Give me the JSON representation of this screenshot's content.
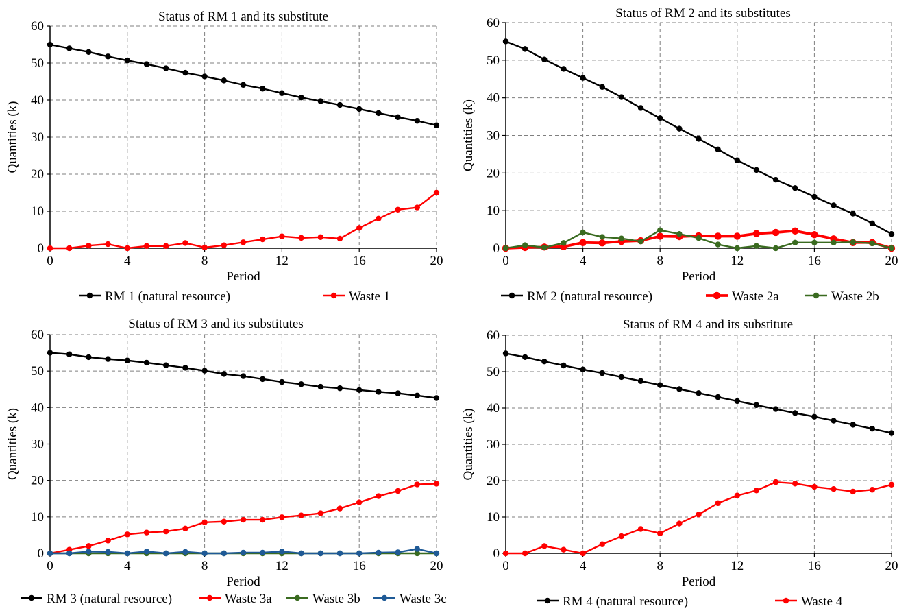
{
  "figure_title": "",
  "chart_data": [
    {
      "type": "line",
      "title": "Status of RM 1 and its substitute",
      "xlabel": "Period",
      "ylabel": "Quantities (k)",
      "xlim": [
        0,
        20
      ],
      "ylim": [
        0,
        60
      ],
      "xticks": [
        0,
        4,
        8,
        12,
        16,
        20
      ],
      "yticks": [
        0,
        10,
        20,
        30,
        40,
        50,
        60
      ],
      "grid": true,
      "legend_position": "bottom",
      "x": [
        0,
        1,
        2,
        3,
        4,
        5,
        6,
        7,
        8,
        9,
        10,
        11,
        12,
        13,
        14,
        15,
        16,
        17,
        18,
        19,
        20
      ],
      "series": [
        {
          "name": "RM 1 (natural resource)",
          "color": "#000000",
          "thick": false,
          "values": [
            55,
            54,
            53,
            51.8,
            50.7,
            49.7,
            48.6,
            47.4,
            46.4,
            45.3,
            44.1,
            43.1,
            41.9,
            40.7,
            39.7,
            38.7,
            37.6,
            36.5,
            35.4,
            34.4,
            33.2
          ]
        },
        {
          "name": "Waste 1",
          "color": "#ff0000",
          "thick": false,
          "values": [
            0,
            0,
            0.7,
            1.1,
            0,
            0.6,
            0.6,
            1.4,
            0.2,
            0.8,
            1.6,
            2.4,
            3.2,
            2.8,
            3,
            2.6,
            5.5,
            8,
            10.4,
            11,
            15
          ]
        }
      ]
    },
    {
      "type": "line",
      "title": "Status of RM 2 and its substitutes",
      "xlabel": "Period",
      "ylabel": "Quantities (k)",
      "xlim": [
        0,
        20
      ],
      "ylim": [
        0,
        60
      ],
      "xticks": [
        0,
        4,
        8,
        12,
        16,
        20
      ],
      "yticks": [
        0,
        10,
        20,
        30,
        40,
        50,
        60
      ],
      "grid": true,
      "legend_position": "bottom",
      "x": [
        0,
        1,
        2,
        3,
        4,
        5,
        6,
        7,
        8,
        9,
        10,
        11,
        12,
        13,
        14,
        15,
        16,
        17,
        18,
        19,
        20
      ],
      "series": [
        {
          "name": "RM 2 (natural resource)",
          "color": "#000000",
          "thick": false,
          "values": [
            55,
            53,
            50.2,
            47.7,
            45.3,
            42.9,
            40.2,
            37.3,
            34.6,
            31.8,
            29.1,
            26.3,
            23.4,
            20.8,
            18.2,
            16,
            13.7,
            11.4,
            9.2,
            6.6,
            3.8
          ]
        },
        {
          "name": "Waste 2a",
          "color": "#ff0000",
          "thick": true,
          "values": [
            0,
            0.2,
            0.3,
            0.4,
            1.5,
            1.4,
            1.8,
            2,
            3.2,
            3.1,
            3.3,
            3.2,
            3.2,
            3.9,
            4.2,
            4.6,
            3.6,
            2.5,
            1.5,
            1.5,
            0
          ]
        },
        {
          "name": "Waste 2b",
          "color": "#3a6b20",
          "thick": false,
          "values": [
            0,
            0.8,
            0.2,
            1.4,
            4.2,
            3,
            2.6,
            1.8,
            4.8,
            3.8,
            2.7,
            1,
            0,
            0.6,
            0,
            1.5,
            1.5,
            1.5,
            1.6,
            1.3,
            0
          ]
        }
      ]
    },
    {
      "type": "line",
      "title": "Status of RM 3 and its substitutes",
      "xlabel": "Period",
      "ylabel": "Quantities (k)",
      "xlim": [
        0,
        20
      ],
      "ylim": [
        0,
        60
      ],
      "xticks": [
        0,
        4,
        8,
        12,
        16,
        20
      ],
      "yticks": [
        0,
        10,
        20,
        30,
        40,
        50,
        60
      ],
      "grid": true,
      "legend_position": "bottom",
      "x": [
        0,
        1,
        2,
        3,
        4,
        5,
        6,
        7,
        8,
        9,
        10,
        11,
        12,
        13,
        14,
        15,
        16,
        17,
        18,
        19,
        20
      ],
      "series": [
        {
          "name": "RM 3 (natural resource)",
          "color": "#000000",
          "thick": false,
          "values": [
            55,
            54.6,
            53.8,
            53.3,
            52.9,
            52.3,
            51.6,
            50.9,
            50.1,
            49.2,
            48.6,
            47.8,
            47,
            46.4,
            45.7,
            45.3,
            44.8,
            44.3,
            43.9,
            43.3,
            42.6
          ]
        },
        {
          "name": "Waste 3a",
          "color": "#ff0000",
          "thick": false,
          "values": [
            0,
            1,
            2,
            3.5,
            5.2,
            5.7,
            6,
            6.8,
            8.5,
            8.7,
            9.2,
            9.2,
            9.9,
            10.4,
            11,
            12.3,
            14,
            15.7,
            17.1,
            18.9,
            19.1
          ]
        },
        {
          "name": "Waste 3b",
          "color": "#3a6b20",
          "thick": false,
          "values": [
            0,
            0,
            0,
            0,
            0,
            0,
            0,
            0,
            0,
            0,
            0,
            0,
            0,
            0,
            0,
            0,
            0,
            0,
            0,
            0,
            0
          ]
        },
        {
          "name": "Waste 3c",
          "color": "#1f5a96",
          "thick": false,
          "values": [
            0,
            0,
            0.5,
            0.4,
            0,
            0.5,
            0,
            0.4,
            0,
            0,
            0.2,
            0.2,
            0.5,
            0,
            0,
            0,
            0,
            0.2,
            0.3,
            1.2,
            0
          ]
        }
      ]
    },
    {
      "type": "line",
      "title": "Status of RM 4 and its substitute",
      "xlabel": "Period",
      "ylabel": "Quantities (k)",
      "xlim": [
        0,
        20
      ],
      "ylim": [
        0,
        60
      ],
      "xticks": [
        0,
        4,
        8,
        12,
        16,
        20
      ],
      "yticks": [
        0,
        10,
        20,
        30,
        40,
        50,
        60
      ],
      "grid": true,
      "legend_position": "bottom",
      "x": [
        0,
        1,
        2,
        3,
        4,
        5,
        6,
        7,
        8,
        9,
        10,
        11,
        12,
        13,
        14,
        15,
        16,
        17,
        18,
        19,
        20
      ],
      "series": [
        {
          "name": "RM 4 (natural resource)",
          "color": "#000000",
          "thick": false,
          "values": [
            55,
            54,
            52.8,
            51.7,
            50.6,
            49.6,
            48.5,
            47.4,
            46.3,
            45.2,
            44.1,
            43,
            41.9,
            40.8,
            39.7,
            38.6,
            37.6,
            36.5,
            35.4,
            34.3,
            33.1
          ]
        },
        {
          "name": "Waste 4",
          "color": "#ff0000",
          "thick": false,
          "values": [
            0,
            0,
            2,
            1,
            0,
            2.5,
            4.7,
            6.7,
            5.5,
            8.2,
            10.7,
            13.8,
            15.9,
            17.3,
            19.6,
            19.2,
            18.3,
            17.7,
            17,
            17.5,
            18.9
          ]
        }
      ]
    }
  ]
}
